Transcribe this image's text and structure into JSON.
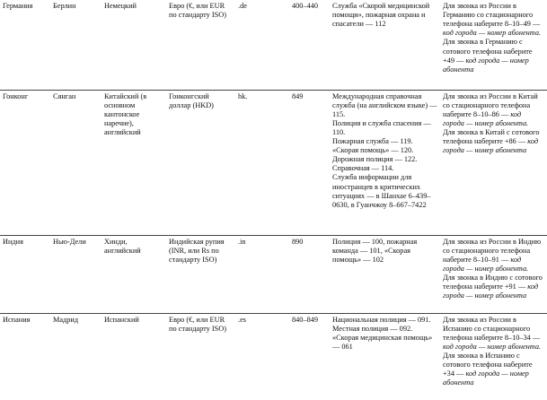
{
  "table": {
    "rows": [
      [
        "Германия",
        "Берлин",
        "Немецкий",
        "Евро (€, или EUR по стандарту ISO)",
        ".de",
        "400–440",
        [
          {
            "text": "Служба «Скорой медицинской помощи», пожарная охрана и спасатели — 112"
          }
        ],
        [
          {
            "text": "Для звонка из России в Германию со стационарного телефона наберите 8–10–49 —",
            "italic": "код города — номер абонента."
          },
          {
            "text": "Для звонка в Германию с сотового телефона наберите +49 —",
            "italic": "код города — номер абонента"
          }
        ]
      ],
      [
        "Гонконг",
        "Сянган",
        "Китайский (в основном кантонское наречие), английский",
        "Гонконгский доллар (HKD)",
        "hk.",
        "849",
        [
          {
            "text": "Международная справочная служба (на английском языке) — 115."
          },
          {
            "text": "Полиция и служба спасения — 110."
          },
          {
            "text": "Пожарная служба — 119."
          },
          {
            "text": "«Скорая помощь» — 120."
          },
          {
            "text": "Дорожная полиция — 122."
          },
          {
            "text": "Справочная — 114."
          },
          {
            "text": "Служба информации для иностранцев в критических ситуациях — в Шанхае 6–439–0630, в Гуанчжоу 8–667–7422"
          }
        ],
        [
          {
            "text": "Для звонка из России в Китай со стационарного телефона наберите 8–10–86 —",
            "italic": "код города — номер абонента."
          },
          {
            "text": "Для звонка в Китай с сотового телефона наберите +86 —",
            "italic": "код города — номер абонента"
          }
        ]
      ],
      [
        "Индия",
        "Нью-Дели",
        "Хинди, английский",
        "Индийская рупия (INR, или Rs по стандарту ISO)",
        ".in",
        "890",
        [
          {
            "text": "Полиция — 100, пожарная команда — 101, «Скорая помощь» — 102"
          }
        ],
        [
          {
            "text": "Для звонка из России в Индию со стационарного телефона наберите 8–10–91 —",
            "italic": "код города — номер абонента."
          },
          {
            "text": "Для звонка в Индию с сотового телефона наберите +91 —",
            "italic": "код города — номер абонента"
          }
        ]
      ],
      [
        "Испания",
        "Мадрид",
        "Испанский",
        "Евро (€, или EUR по стандарту ISO)",
        ".es",
        "840–849",
        [
          {
            "text": "Национальная полиция — 091."
          },
          {
            "text": "Местная полиция — 092."
          },
          {
            "text": "«Скорая медицинская помощь» — 061"
          }
        ],
        [
          {
            "text": "Для звонка из России в Испанию со стационарного телефона наберите 8–10–34 —",
            "italic": "код города — номер абонента."
          },
          {
            "text": "Для звонка в Испанию с сотового телефона наберите +34 —",
            "italic": "код города — номер абонента"
          }
        ]
      ]
    ]
  }
}
